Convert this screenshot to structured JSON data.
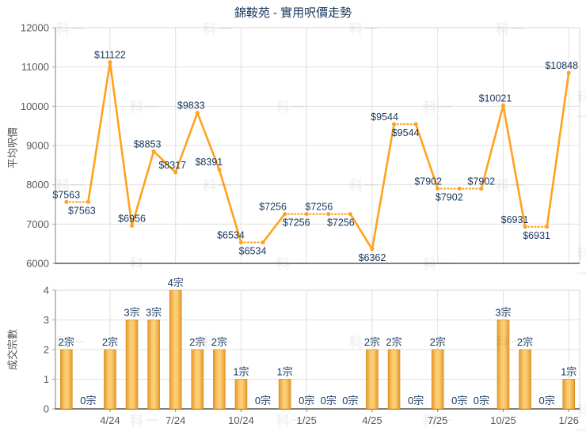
{
  "title": "錦鞍苑 - 實用呎價走勢",
  "watermark_text": "科一",
  "colors": {
    "series_orange": "#FFA21E",
    "bar_edge": "#E6992B",
    "bar_center": "#FCCE74",
    "bar_outline": "#CE8A1E",
    "data_label": "#17375D",
    "axis_text": "#595959",
    "axis_title_text": "#555555",
    "gridline": "#E0E0E0",
    "plot_border": "#D6D6D6",
    "axis_line_dark": "#808080",
    "axis_line_left": "#A8A8A8",
    "background": "#FFFFFF"
  },
  "chart_data": [
    {
      "type": "line",
      "name": "price-trend",
      "title": "錦鞍苑 - 實用呎價走勢",
      "ylabel": "平均呎價",
      "xlabel": "",
      "ylim": [
        6000,
        12000
      ],
      "ytick_step": 1000,
      "ytick_labels": [
        "12000",
        "11000",
        "10000",
        "9000",
        "8000",
        "7000",
        "6000"
      ],
      "grid": true,
      "x_slots": 24,
      "xtick_labels": [
        {
          "label": "4/24",
          "slot": 2
        },
        {
          "label": "7/24",
          "slot": 5
        },
        {
          "label": "10/24",
          "slot": 8
        },
        {
          "label": "1/25",
          "slot": 11
        },
        {
          "label": "4/25",
          "slot": 14
        },
        {
          "label": "7/25",
          "slot": 17
        },
        {
          "label": "10/25",
          "slot": 20
        },
        {
          "label": "1/26",
          "slot": 23
        }
      ],
      "values": [
        7563,
        7563,
        11122,
        6956,
        8853,
        8317,
        9833,
        8391,
        6534,
        6534,
        7256,
        7256,
        7256,
        7256,
        6362,
        9544,
        9544,
        7902,
        7902,
        7902,
        10021,
        6931,
        6931,
        10848
      ],
      "point_labels": [
        "$7563",
        "$7563",
        "$11122",
        "$6956",
        "$8853",
        "$8317",
        "$9833",
        "$8391",
        "$6534",
        "$6534",
        "$7256",
        "$7256",
        "$7256",
        "$7256",
        "$6362",
        "$9544",
        "$9544",
        "$7902",
        "$7902",
        "$7902",
        "$10021",
        "$6931",
        "$6931",
        "$10848"
      ],
      "label_pos": [
        "above",
        "below",
        "above",
        "above",
        "above",
        "above",
        "above",
        "above",
        "above",
        "below",
        "above",
        "below",
        "above",
        "below",
        "below",
        "above",
        "below",
        "above",
        "below",
        "above",
        "above",
        "above",
        "below",
        "above"
      ],
      "label_dx": [
        0,
        -8,
        0,
        0,
        -8,
        -4,
        -8,
        -13,
        -13,
        -13,
        -15,
        -13,
        -12,
        -12,
        0,
        -12,
        -13,
        -12,
        -13,
        0,
        -10,
        -13,
        -13,
        -9
      ],
      "dotted_to_point": [
        false,
        true,
        false,
        false,
        false,
        false,
        false,
        false,
        false,
        true,
        false,
        true,
        true,
        true,
        false,
        false,
        true,
        false,
        true,
        true,
        false,
        false,
        true,
        false
      ]
    },
    {
      "type": "bar",
      "name": "transaction-volume",
      "ylabel": "成交宗數",
      "xlabel": "",
      "ylim": [
        0,
        4
      ],
      "ytick_step": 1,
      "ytick_labels": [
        "4",
        "3",
        "2",
        "1",
        "0"
      ],
      "grid": true,
      "x_slots": 24,
      "values": [
        2,
        0,
        2,
        3,
        3,
        4,
        2,
        2,
        1,
        0,
        1,
        0,
        0,
        0,
        2,
        2,
        0,
        2,
        0,
        0,
        3,
        2,
        0,
        1
      ],
      "bar_labels": [
        "2宗",
        "0宗",
        "2宗",
        "3宗",
        "3宗",
        "4宗",
        "2宗",
        "2宗",
        "1宗",
        "0宗",
        "1宗",
        "0宗",
        "0宗",
        "0宗",
        "2宗",
        "2宗",
        "0宗",
        "2宗",
        "0宗",
        "0宗",
        "3宗",
        "2宗",
        "0宗",
        "1宗"
      ]
    }
  ]
}
